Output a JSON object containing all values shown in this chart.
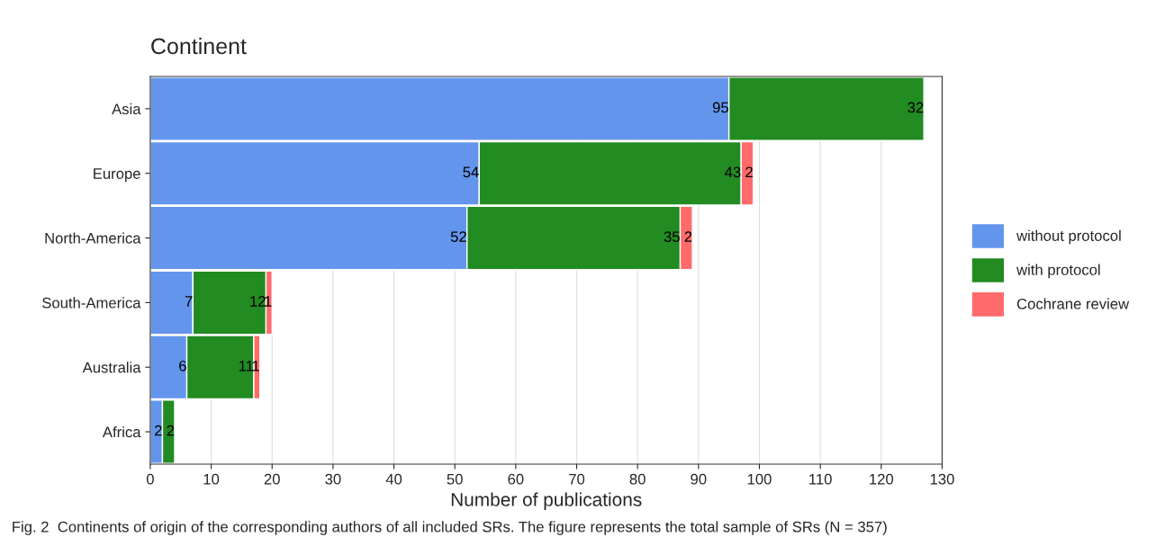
{
  "chart_data": {
    "type": "bar",
    "orientation": "horizontal",
    "stacked": true,
    "title": "Continent",
    "xlabel": "Number of publications",
    "categories": [
      "Asia",
      "Europe",
      "North-America",
      "South-America",
      "Australia",
      "Africa"
    ],
    "series": [
      {
        "name": "without protocol",
        "color": "#6495ed",
        "values": [
          95,
          54,
          52,
          7,
          6,
          2
        ],
        "value_labels": [
          "95",
          "54",
          "52",
          "7",
          "6",
          "2"
        ]
      },
      {
        "name": "with protocol",
        "color": "#228b22",
        "values": [
          32,
          43,
          35,
          12,
          11,
          2
        ],
        "value_labels": [
          "32",
          "43",
          "35",
          "12",
          "11",
          "2"
        ]
      },
      {
        "name": "Cochrane review",
        "color": "#ff6a6a",
        "values": [
          0,
          2,
          2,
          1,
          1,
          0
        ],
        "value_labels": [
          null,
          "2",
          "2",
          "1",
          "1",
          null
        ]
      }
    ],
    "xlim": [
      0,
      130
    ],
    "xticks": [
      0,
      10,
      20,
      30,
      40,
      50,
      60,
      70,
      80,
      90,
      100,
      110,
      120,
      130
    ],
    "grid": true,
    "legend": "right",
    "annotations": [
      "Fig. 2  Continents of origin of the corresponding authors of all included SRs. The figure represents the total sample of SRs (N = 357)"
    ]
  }
}
